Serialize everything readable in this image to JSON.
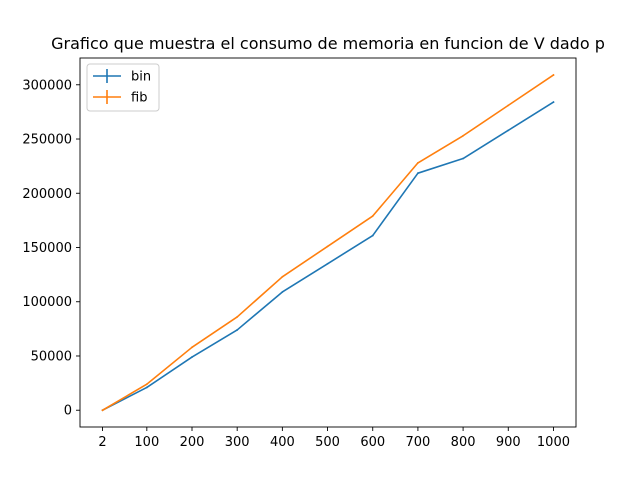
{
  "chart_data": {
    "type": "line",
    "title": "Grafico que muestra el consumo de memoria en funcion de V dado p",
    "xlabel": "",
    "ylabel": "",
    "x": [
      2,
      100,
      200,
      300,
      400,
      500,
      600,
      700,
      800,
      900,
      1000
    ],
    "xlim": [
      -47.9,
      1049.9
    ],
    "ylim": [
      -15461,
      324681
    ],
    "xticks": [
      2,
      100,
      200,
      300,
      400,
      500,
      600,
      700,
      800,
      900,
      1000
    ],
    "yticks": [
      0,
      50000,
      100000,
      150000,
      200000,
      250000,
      300000
    ],
    "grid": false,
    "legend_position": "top-left",
    "series": [
      {
        "name": "bin",
        "color": "#1f77b4",
        "values": [
          0,
          21000,
          49000,
          74000,
          109000,
          135000,
          161000,
          218500,
          232000,
          258000,
          284000
        ]
      },
      {
        "name": "fib",
        "color": "#ff7f0e",
        "values": [
          0,
          24000,
          58000,
          86000,
          123000,
          151000,
          179000,
          228000,
          253000,
          281000,
          309000
        ]
      }
    ]
  }
}
